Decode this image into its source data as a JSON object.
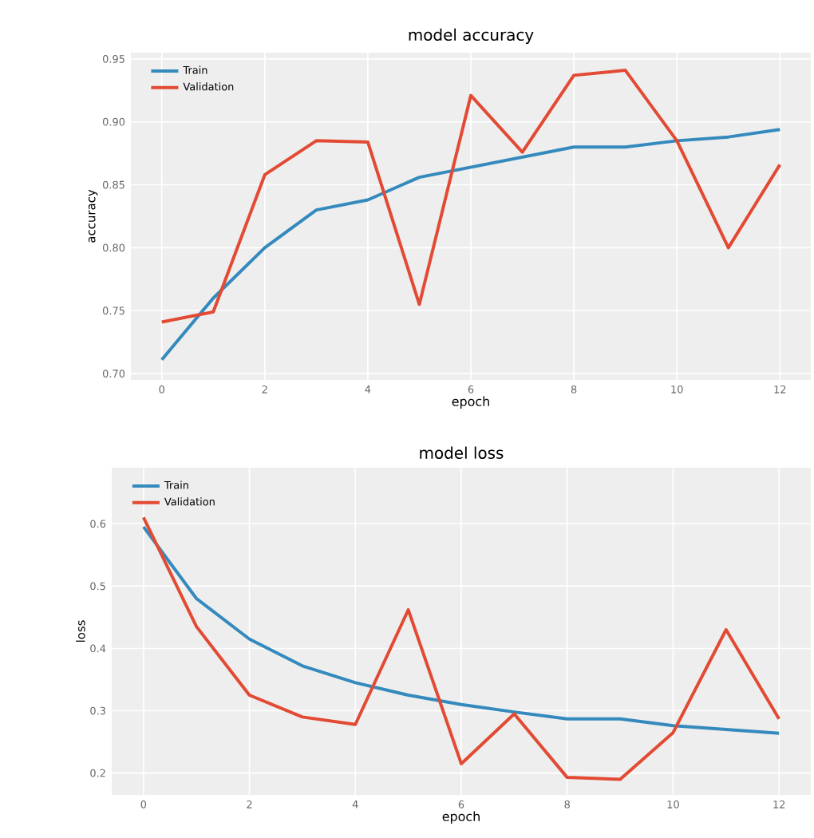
{
  "chart_data": [
    {
      "type": "line",
      "title": "model accuracy",
      "xlabel": "epoch",
      "ylabel": "accuracy",
      "x": [
        0,
        1,
        2,
        3,
        4,
        5,
        6,
        7,
        8,
        9,
        10,
        11,
        12
      ],
      "xlim": [
        -0.6,
        12.6
      ],
      "ylim": [
        0.695,
        0.955
      ],
      "xticks": [
        0,
        2,
        4,
        6,
        8,
        10,
        12
      ],
      "yticks": [
        {
          "value": 0.7,
          "label": "0.70"
        },
        0.75,
        {
          "value": 0.8,
          "label": "0.80"
        },
        0.85,
        {
          "value": 0.9,
          "label": "0.90"
        },
        0.95
      ],
      "grid": true,
      "legend": "top left",
      "series": [
        {
          "name": "Train",
          "color": "#348abd",
          "values": [
            0.711,
            0.76,
            0.8,
            0.83,
            0.838,
            0.856,
            0.864,
            0.872,
            0.88,
            0.88,
            0.885,
            0.888,
            0.894
          ]
        },
        {
          "name": "Validation",
          "color": "#e24a33",
          "values": [
            0.741,
            0.749,
            0.858,
            0.885,
            0.884,
            0.755,
            0.921,
            0.876,
            0.937,
            0.941,
            0.885,
            0.8,
            0.866
          ]
        }
      ]
    },
    {
      "type": "line",
      "title": "model loss",
      "xlabel": "epoch",
      "ylabel": "loss",
      "x": [
        0,
        1,
        2,
        3,
        4,
        5,
        6,
        7,
        8,
        9,
        10,
        11,
        12
      ],
      "xlim": [
        -0.6,
        12.6
      ],
      "ylim": [
        0.165,
        0.69
      ],
      "xticks": [
        0,
        2,
        4,
        6,
        8,
        10,
        12
      ],
      "yticks": [
        0.2,
        0.3,
        0.4,
        0.5,
        0.6
      ],
      "grid": true,
      "legend": "top left",
      "series": [
        {
          "name": "Train",
          "color": "#348abd",
          "values": [
            0.595,
            0.48,
            0.415,
            0.372,
            0.345,
            0.325,
            0.31,
            0.298,
            0.287,
            0.287,
            0.276,
            0.27,
            0.264
          ]
        },
        {
          "name": "Validation",
          "color": "#e24a33",
          "values": [
            0.61,
            0.435,
            0.325,
            0.29,
            0.278,
            0.462,
            0.215,
            0.295,
            0.193,
            0.19,
            0.265,
            0.43,
            0.287
          ]
        }
      ]
    }
  ]
}
